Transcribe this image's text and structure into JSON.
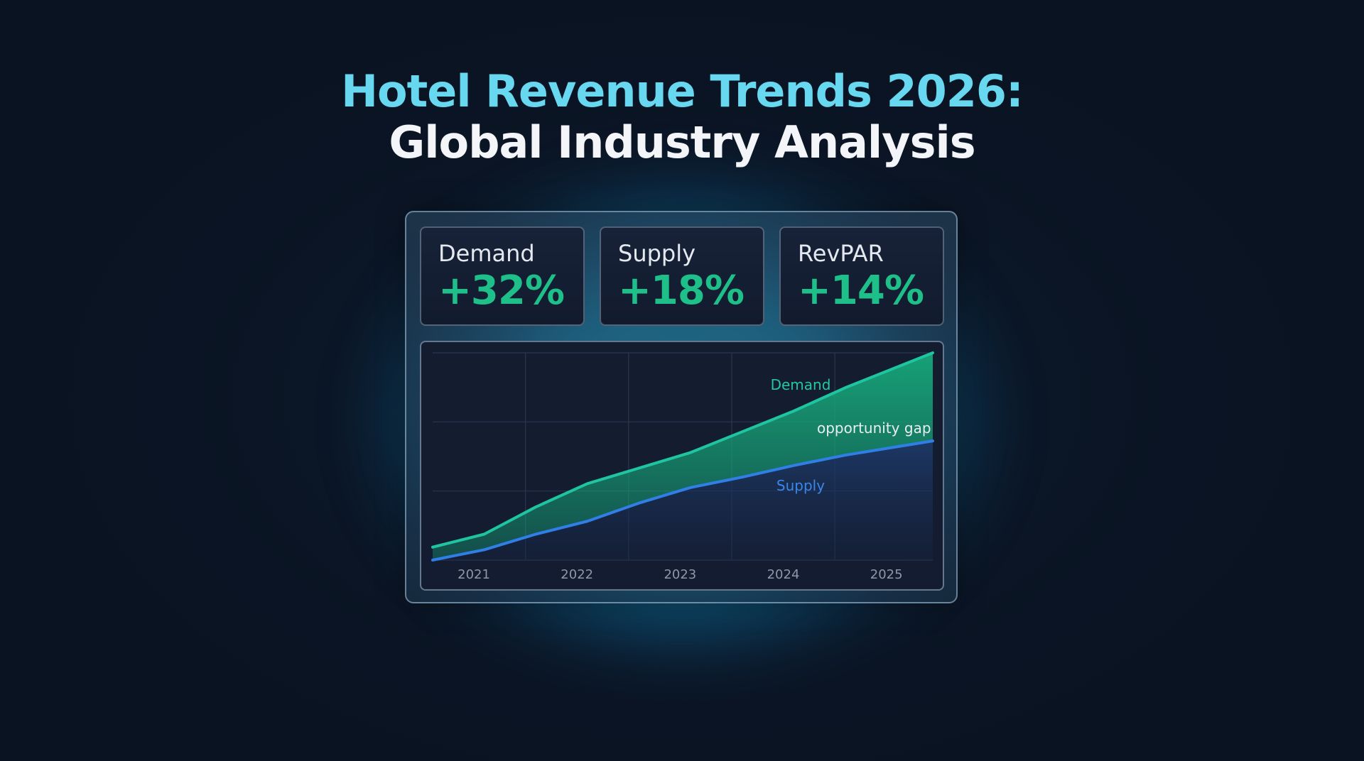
{
  "title": {
    "line1": "Hotel Revenue Trends  2026:",
    "line2": "Global Industry Analysis"
  },
  "metrics": [
    {
      "label": "Demand",
      "value": "+32%"
    },
    {
      "label": "Supply",
      "value": "+18%"
    },
    {
      "label": "RevPAR",
      "value": "+14%"
    }
  ],
  "colors": {
    "title_accent": "#67d8f0",
    "positive": "#1fbf8a",
    "demand_line": "#1fc4a0",
    "supply_line": "#2f7fe6",
    "gap_fill": "#16a87a"
  },
  "chart_data": {
    "type": "line",
    "x_tick_labels": [
      "2021",
      "2022",
      "2023",
      "2024",
      "2025"
    ],
    "x": [
      2020.6,
      2021.1,
      2021.6,
      2022.1,
      2022.6,
      2023.1,
      2023.6,
      2024.1,
      2024.6,
      2025.45
    ],
    "series": [
      {
        "name": "Demand",
        "values": [
          0.5,
          1.5,
          3.6,
          5.4,
          6.6,
          7.8,
          9.4,
          11.0,
          12.8,
          15.5
        ]
      },
      {
        "name": "Supply",
        "values": [
          -0.5,
          0.3,
          1.5,
          2.5,
          3.9,
          5.1,
          5.9,
          6.8,
          7.6,
          8.7
        ]
      }
    ],
    "xlim": [
      2020.6,
      2025.45
    ],
    "ylim": [
      -0.5,
      15.5
    ],
    "grid": true,
    "shaded_region": {
      "between": [
        "Demand",
        "Supply"
      ],
      "label": "opportunity gap"
    },
    "annotations": [
      "Demand",
      "opportunity gap",
      "Supply"
    ],
    "xlabel": "",
    "ylabel": ""
  }
}
